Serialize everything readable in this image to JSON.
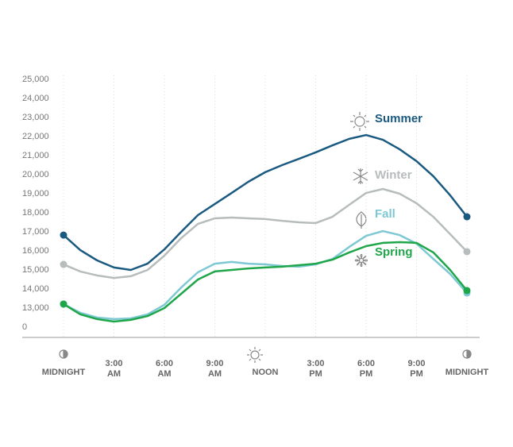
{
  "chart_data": {
    "type": "line",
    "x": [
      0,
      1,
      2,
      3,
      4,
      5,
      6,
      7,
      8,
      9,
      10,
      11,
      12,
      13,
      14,
      15,
      16,
      17,
      18,
      19,
      20,
      21,
      22,
      23,
      24
    ],
    "xlim": [
      0,
      24
    ],
    "xticks": [
      {
        "value": 0,
        "label": "MIDNIGHT"
      },
      {
        "value": 3,
        "label": "3:00\nAM"
      },
      {
        "value": 6,
        "label": "6:00\nAM"
      },
      {
        "value": 9,
        "label": "9:00\nAM"
      },
      {
        "value": 12,
        "label": "NOON"
      },
      {
        "value": 15,
        "label": "3:00\nPM"
      },
      {
        "value": 18,
        "label": "6:00\nPM"
      },
      {
        "value": 21,
        "label": "9:00\nPM"
      },
      {
        "value": 24,
        "label": "MIDNIGHT"
      }
    ],
    "ylim": [
      12000,
      25000
    ],
    "yticks": [
      0,
      {
        "value": 13000,
        "label": "13,000"
      },
      {
        "value": 14000,
        "label": "14,000"
      },
      {
        "value": 15000,
        "label": "15,000"
      },
      {
        "value": 16000,
        "label": "16,000"
      },
      {
        "value": 17000,
        "label": "17,000"
      },
      {
        "value": 18000,
        "label": "18,000"
      },
      {
        "value": 19000,
        "label": "19,000"
      },
      {
        "value": 20000,
        "label": "20,000"
      },
      {
        "value": 21000,
        "label": "21,000"
      },
      {
        "value": 22000,
        "label": "22,000"
      },
      {
        "value": 23000,
        "label": "23,000"
      },
      {
        "value": 24000,
        "label": "24,000"
      },
      {
        "value": 25000,
        "label": "25,000"
      }
    ],
    "grid": true,
    "series": [
      {
        "name": "Summer",
        "color": "#1b5a80",
        "values": [
          16830,
          16040,
          15500,
          15130,
          15000,
          15330,
          16080,
          17000,
          17880,
          18460,
          19040,
          19630,
          20130,
          20500,
          20830,
          21170,
          21540,
          21880,
          22080,
          21830,
          21330,
          20710,
          19920,
          18920,
          17790
        ]
      },
      {
        "name": "Winter",
        "color": "#b7bcbc",
        "values": [
          15290,
          14920,
          14710,
          14580,
          14670,
          15000,
          15750,
          16670,
          17420,
          17710,
          17750,
          17710,
          17670,
          17580,
          17500,
          17460,
          17790,
          18420,
          19040,
          19250,
          19000,
          18500,
          17790,
          16880,
          15960
        ]
      },
      {
        "name": "Fall",
        "color": "#7ec8d3",
        "values": [
          13210,
          12750,
          12500,
          12420,
          12460,
          12670,
          13170,
          14080,
          14880,
          15330,
          15420,
          15330,
          15290,
          15210,
          15170,
          15290,
          15580,
          16210,
          16790,
          17040,
          16830,
          16380,
          15580,
          14790,
          13790
        ]
      },
      {
        "name": "Spring",
        "color": "#1fa64a",
        "values": [
          13210,
          12670,
          12420,
          12290,
          12380,
          12580,
          13000,
          13750,
          14500,
          14920,
          15000,
          15080,
          15130,
          15170,
          15250,
          15330,
          15540,
          15920,
          16250,
          16420,
          16460,
          16420,
          15920,
          15000,
          13920
        ]
      }
    ]
  }
}
